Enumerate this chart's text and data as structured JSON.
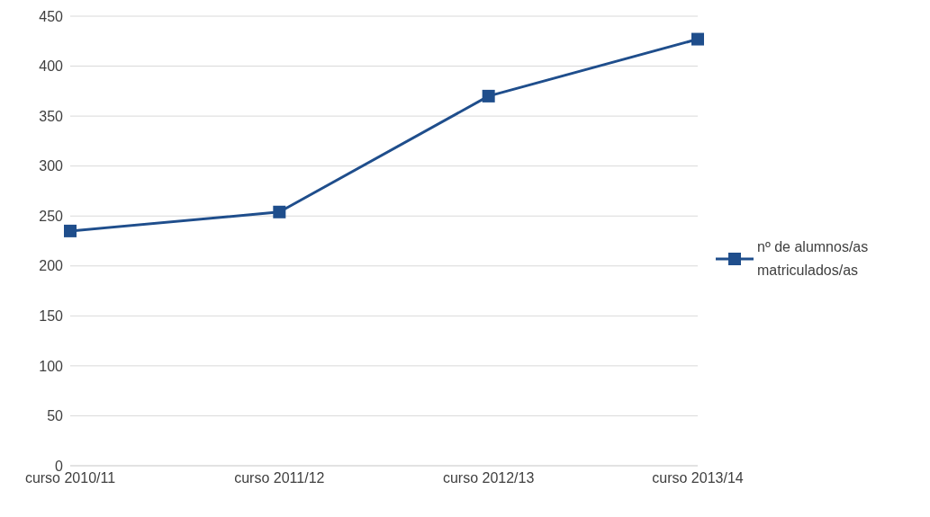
{
  "chart_data": {
    "type": "line",
    "categories": [
      "curso 2010/11",
      "curso 2011/12",
      "curso 2012/13",
      "curso 2013/14"
    ],
    "series": [
      {
        "name": "nº de alumnos/as matriculados/as",
        "color": "#1f4e8c",
        "values": [
          235,
          254,
          370,
          427
        ]
      }
    ],
    "ylim": [
      0,
      450
    ],
    "yticks": [
      0,
      50,
      100,
      150,
      200,
      250,
      300,
      350,
      400,
      450
    ],
    "grid": "y",
    "legend": "right",
    "marker": "square",
    "line_style": "solid"
  }
}
